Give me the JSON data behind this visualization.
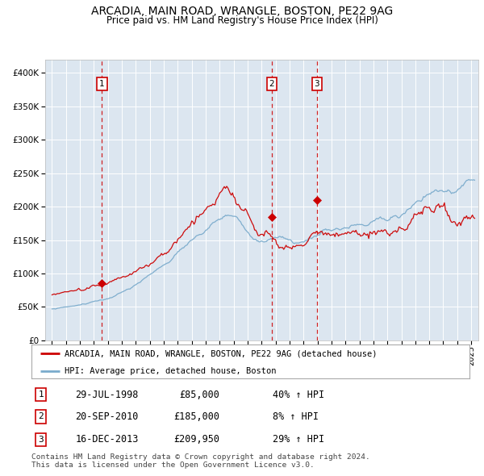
{
  "title": "ARCADIA, MAIN ROAD, WRANGLE, BOSTON, PE22 9AG",
  "subtitle": "Price paid vs. HM Land Registry's House Price Index (HPI)",
  "plot_bg_color": "#dce6f0",
  "red_line_color": "#cc0000",
  "blue_line_color": "#7aabcc",
  "sale_marker_color": "#cc0000",
  "dashed_line_color": "#cc0000",
  "sales": [
    {
      "date_num": 1998.57,
      "price": 85000,
      "label": "1",
      "date_str": "29-JUL-1998",
      "pct": "40% ↑ HPI"
    },
    {
      "date_num": 2010.72,
      "price": 185000,
      "label": "2",
      "date_str": "20-SEP-2010",
      "pct": "8% ↑ HPI"
    },
    {
      "date_num": 2013.96,
      "price": 209950,
      "label": "3",
      "date_str": "16-DEC-2013",
      "pct": "29% ↑ HPI"
    }
  ],
  "ylim": [
    0,
    420000
  ],
  "xlim": [
    1994.5,
    2025.5
  ],
  "yticks": [
    0,
    50000,
    100000,
    150000,
    200000,
    250000,
    300000,
    350000,
    400000
  ],
  "ytick_labels": [
    "£0",
    "£50K",
    "£100K",
    "£150K",
    "£200K",
    "£250K",
    "£300K",
    "£350K",
    "£400K"
  ],
  "xticks": [
    1995,
    1996,
    1997,
    1998,
    1999,
    2000,
    2001,
    2002,
    2003,
    2004,
    2005,
    2006,
    2007,
    2008,
    2009,
    2010,
    2011,
    2012,
    2013,
    2014,
    2015,
    2016,
    2017,
    2018,
    2019,
    2020,
    2021,
    2022,
    2023,
    2024,
    2025
  ],
  "legend_red_label": "ARCADIA, MAIN ROAD, WRANGLE, BOSTON, PE22 9AG (detached house)",
  "legend_blue_label": "HPI: Average price, detached house, Boston",
  "footnote": "Contains HM Land Registry data © Crown copyright and database right 2024.\nThis data is licensed under the Open Government Licence v3.0.",
  "box_border_color": "#cc0000"
}
